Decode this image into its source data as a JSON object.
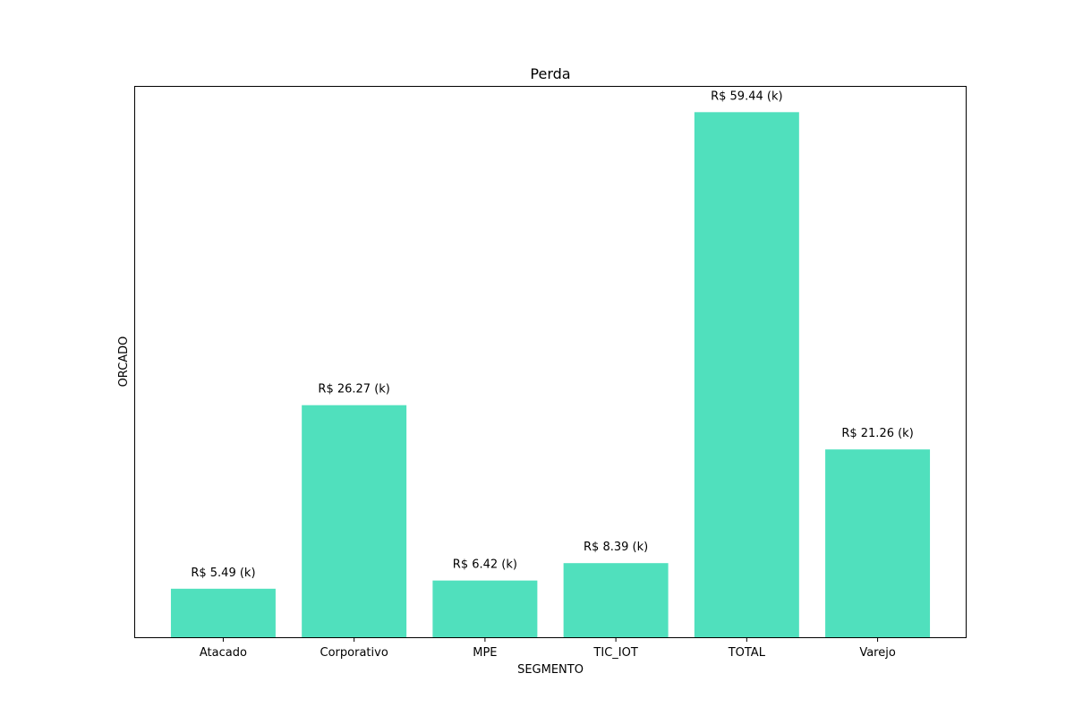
{
  "chart_data": {
    "type": "bar",
    "title": "Perda",
    "xlabel": "SEGMENTO",
    "ylabel": "ORCADO",
    "categories": [
      "Atacado",
      "Corporativo",
      "MPE",
      "TIC_IOT",
      "TOTAL",
      "Varejo"
    ],
    "values": [
      5.49,
      26.27,
      6.42,
      8.39,
      59.44,
      21.26
    ],
    "data_labels": [
      "R$ 5.49 (k)",
      "R$ 26.27 (k)",
      "R$ 6.42 (k)",
      "R$ 8.39 (k)",
      "R$ 59.44 (k)",
      "R$ 21.26 (k)"
    ],
    "ylim": [
      0,
      62.41
    ],
    "y_ticks_visible": false,
    "grid": false,
    "bar_color": "#50e0bd"
  }
}
